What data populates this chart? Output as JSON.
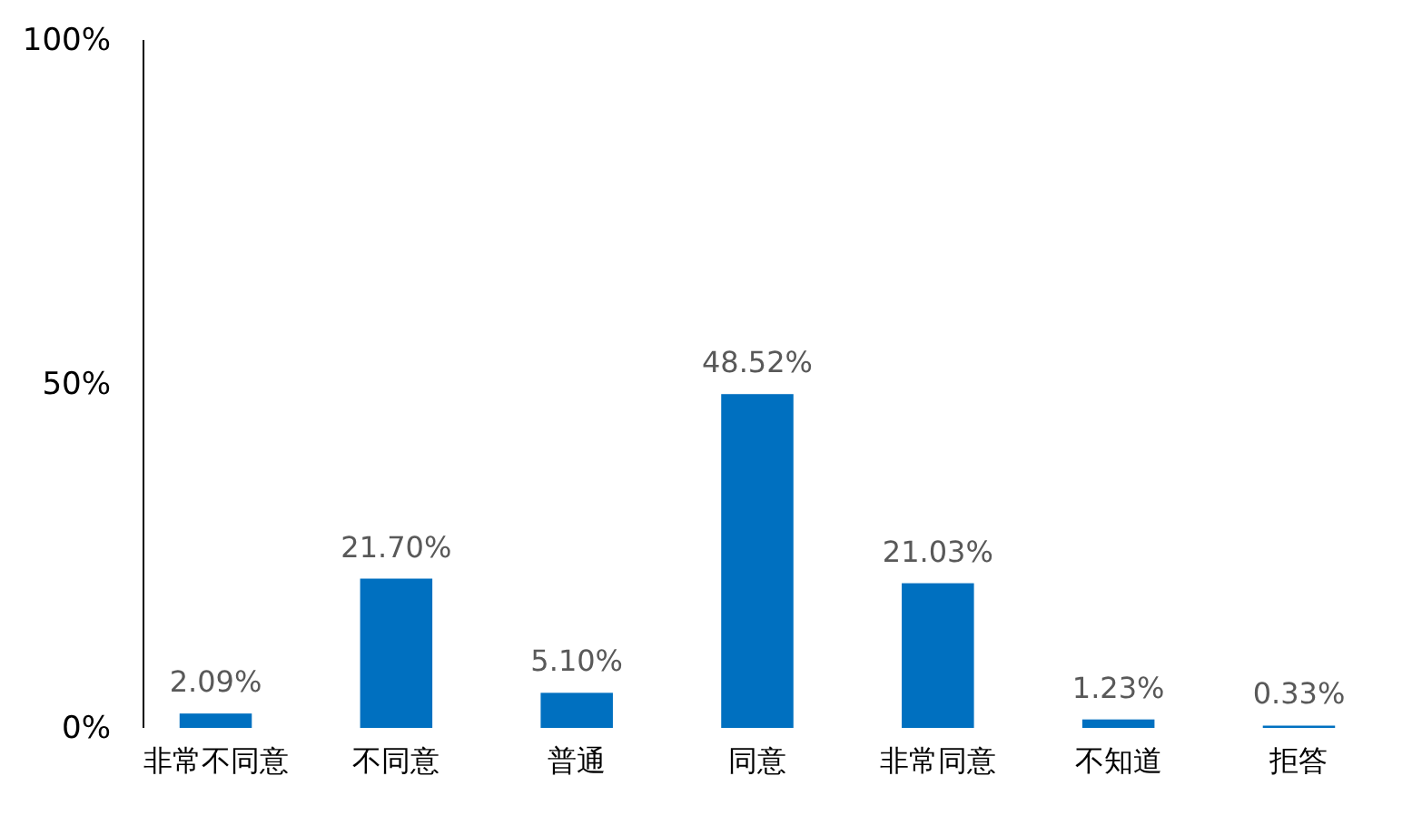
{
  "chart_data": {
    "type": "bar",
    "categories": [
      "非常不同意",
      "不同意",
      "普通",
      "同意",
      "非常同意",
      "不知道",
      "拒答"
    ],
    "values": [
      2.09,
      21.7,
      5.1,
      48.52,
      21.03,
      1.23,
      0.33
    ],
    "value_labels": [
      "2.09%",
      "21.70%",
      "5.10%",
      "48.52%",
      "21.03%",
      "1.23%",
      "0.33%"
    ],
    "color": "#0070c0",
    "ylim": [
      0,
      100
    ],
    "yticks": [
      {
        "value": 0,
        "label": "0%"
      },
      {
        "value": 50,
        "label": "50%"
      },
      {
        "value": 100,
        "label": "100%"
      }
    ],
    "grid": false
  }
}
